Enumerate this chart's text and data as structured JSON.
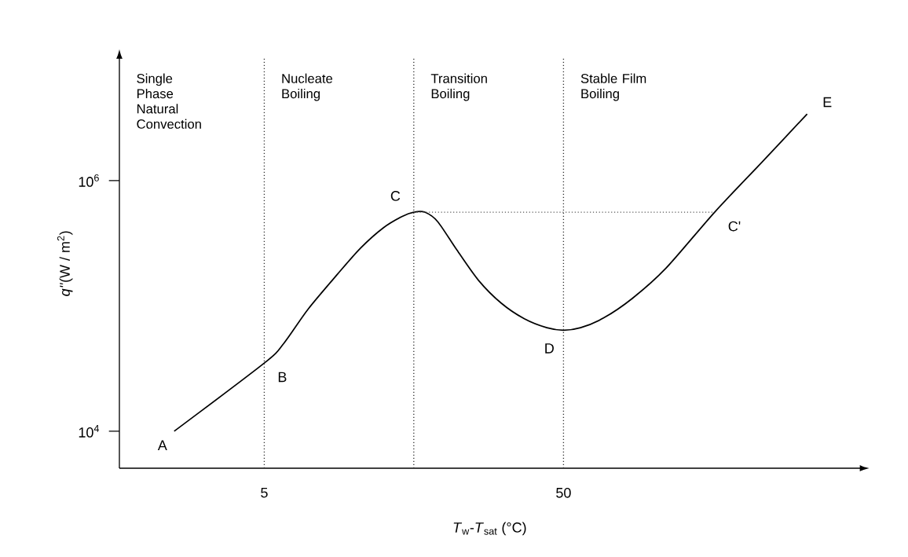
{
  "chart_data": {
    "type": "line",
    "log": "xy",
    "xlabel": "*T*$_{w}$-*T*$_{sat}$ (°C)",
    "ylabel": "*q''*(W / m$^{2}$)",
    "xlim": [
      1.64,
      489
    ],
    "ylim": [
      5070,
      9400000
    ],
    "xticks": [
      5,
      50
    ],
    "yticks": [
      {
        "value": 10000,
        "label": "10$^{4}$"
      },
      {
        "value": 1000000,
        "label": "10$^{6}$"
      }
    ],
    "marker": "none",
    "line_style": "solid",
    "series": [
      {
        "color": "#000000",
        "x": [
          2.5,
          5,
          5.8,
          7,
          8.8,
          10.5,
          12.5,
          14.5,
          15.8,
          17.2,
          19,
          22,
          26,
          31,
          37,
          44,
          50,
          57,
          68,
          85,
          110,
          160,
          230,
          326
        ],
        "values": [
          10000,
          35000,
          50000,
          94000,
          180000,
          290000,
          420000,
          520000,
          560000,
          560000,
          470000,
          280000,
          160000,
          105000,
          79000,
          67000,
          64000,
          67000,
          80000,
          115000,
          200000,
          560000,
          1400000,
          3400000
        ]
      },
      {
        "color": "#555555",
        "line_style": "dotted",
        "x": [
          15.8,
          160
        ],
        "values": [
          560000,
          560000
        ]
      }
    ],
    "ref_lines": [
      {
        "axis": "x",
        "value": 5,
        "line_style": "dotted",
        "color": "#333333"
      },
      {
        "axis": "x",
        "value": 15.8,
        "line_style": "dotted",
        "color": "#333333"
      },
      {
        "axis": "x",
        "value": 50,
        "line_style": "dotted",
        "color": "#333333"
      }
    ],
    "annotations": [
      "Single Phase Natural Convection",
      "Nucleate Boiling",
      "Transition Boiling",
      "Stable Film Boiling",
      {
        "text": "A",
        "x": 2.5,
        "y": 10000
      },
      {
        "text": "B",
        "x": 5,
        "y": 35000
      },
      {
        "text": "C",
        "x": 15.8,
        "y": 560000
      },
      {
        "text": "D",
        "x": 50,
        "y": 64000
      },
      {
        "text": "C'",
        "x": 160,
        "y": 560000
      },
      {
        "text": "E",
        "x": 326,
        "y": 3400000
      }
    ]
  }
}
